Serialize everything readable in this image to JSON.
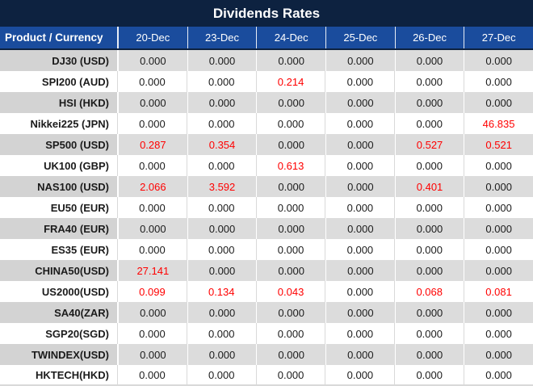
{
  "title": "Dividends Rates",
  "header": {
    "product_column": "Product / Currency",
    "date_columns": [
      "20-Dec",
      "23-Dec",
      "24-Dec",
      "25-Dec",
      "26-Dec",
      "27-Dec"
    ]
  },
  "rows": [
    {
      "product": "DJ30 (USD)",
      "values": [
        "0.000",
        "0.000",
        "0.000",
        "0.000",
        "0.000",
        "0.000"
      ],
      "red_indices": []
    },
    {
      "product": "SPI200 (AUD)",
      "values": [
        "0.000",
        "0.000",
        "0.214",
        "0.000",
        "0.000",
        "0.000"
      ],
      "red_indices": [
        2
      ]
    },
    {
      "product": "HSI (HKD)",
      "values": [
        "0.000",
        "0.000",
        "0.000",
        "0.000",
        "0.000",
        "0.000"
      ],
      "red_indices": []
    },
    {
      "product": "Nikkei225 (JPN)",
      "values": [
        "0.000",
        "0.000",
        "0.000",
        "0.000",
        "0.000",
        "46.835"
      ],
      "red_indices": [
        5
      ]
    },
    {
      "product": "SP500 (USD)",
      "values": [
        "0.287",
        "0.354",
        "0.000",
        "0.000",
        "0.527",
        "0.521"
      ],
      "red_indices": [
        0,
        1,
        4,
        5
      ]
    },
    {
      "product": "UK100 (GBP)",
      "values": [
        "0.000",
        "0.000",
        "0.613",
        "0.000",
        "0.000",
        "0.000"
      ],
      "red_indices": [
        2
      ]
    },
    {
      "product": "NAS100 (USD)",
      "values": [
        "2.066",
        "3.592",
        "0.000",
        "0.000",
        "0.401",
        "0.000"
      ],
      "red_indices": [
        0,
        1,
        4
      ]
    },
    {
      "product": "EU50 (EUR)",
      "values": [
        "0.000",
        "0.000",
        "0.000",
        "0.000",
        "0.000",
        "0.000"
      ],
      "red_indices": []
    },
    {
      "product": "FRA40 (EUR)",
      "values": [
        "0.000",
        "0.000",
        "0.000",
        "0.000",
        "0.000",
        "0.000"
      ],
      "red_indices": []
    },
    {
      "product": "ES35 (EUR)",
      "values": [
        "0.000",
        "0.000",
        "0.000",
        "0.000",
        "0.000",
        "0.000"
      ],
      "red_indices": []
    },
    {
      "product": "CHINA50(USD)",
      "values": [
        "27.141",
        "0.000",
        "0.000",
        "0.000",
        "0.000",
        "0.000"
      ],
      "red_indices": [
        0
      ]
    },
    {
      "product": "US2000(USD)",
      "values": [
        "0.099",
        "0.134",
        "0.043",
        "0.000",
        "0.068",
        "0.081"
      ],
      "red_indices": [
        0,
        1,
        2,
        4,
        5
      ]
    },
    {
      "product": "SA40(ZAR)",
      "values": [
        "0.000",
        "0.000",
        "0.000",
        "0.000",
        "0.000",
        "0.000"
      ],
      "red_indices": []
    },
    {
      "product": "SGP20(SGD)",
      "values": [
        "0.000",
        "0.000",
        "0.000",
        "0.000",
        "0.000",
        "0.000"
      ],
      "red_indices": []
    },
    {
      "product": "TWINDEX(USD)",
      "values": [
        "0.000",
        "0.000",
        "0.000",
        "0.000",
        "0.000",
        "0.000"
      ],
      "red_indices": []
    },
    {
      "product": "HKTECH(HKD)",
      "values": [
        "0.000",
        "0.000",
        "0.000",
        "0.000",
        "0.000",
        "0.000"
      ],
      "red_indices": []
    }
  ],
  "colors": {
    "title_bg": "#0D2240",
    "header_bg": "#1A4C9D",
    "highlight_red": "#FF0000",
    "row_gray": "#DCDCDC",
    "product_col_gray": "#D3D3D3",
    "header_text": "#FFFFFF",
    "value_text": "#1B1B1B"
  }
}
